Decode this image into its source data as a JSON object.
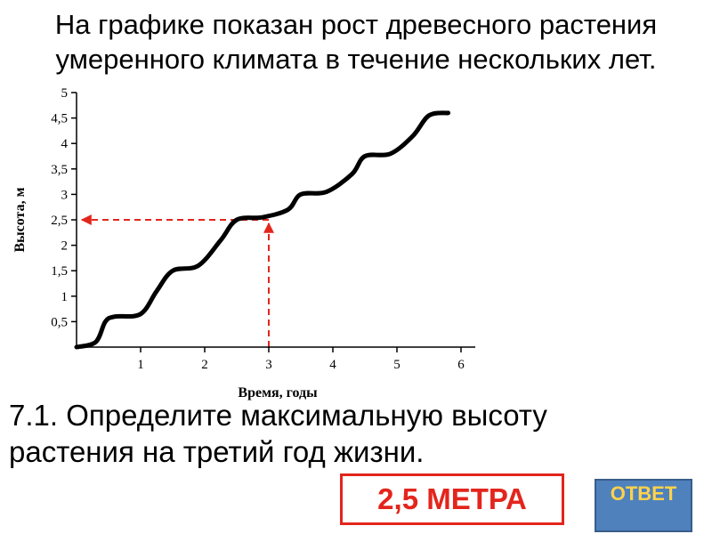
{
  "slide": {
    "title_line1": "На графике показан рост древесного растения",
    "title_line2": "умеренного климата в течение нескольких лет.",
    "question_line1": "7.1. Определите максимальную высоту",
    "question_line2": "растения на третий год жизни.",
    "answer": "2,5 МЕТРА",
    "reveal_button": "ОТВЕТ"
  },
  "colors": {
    "answer_red": "#e3251c",
    "button_blue": "#4f81bd",
    "button_text": "#ffd24a",
    "curve": "#000000"
  },
  "chart_data": {
    "type": "line",
    "xlabel": "Время, годы",
    "ylabel": "Высота, м",
    "xlim": [
      0,
      6
    ],
    "ylim": [
      0,
      5
    ],
    "x_ticks": [
      "1",
      "2",
      "3",
      "4",
      "5",
      "6"
    ],
    "y_ticks": [
      "0,5",
      "1",
      "1,5",
      "2",
      "2,5",
      "3",
      "3,5",
      "4",
      "4,5",
      "5"
    ],
    "grid": false,
    "series": [
      {
        "x": [
          0,
          0.3,
          0.45,
          0.6,
          1.0,
          1.25,
          1.5,
          1.9,
          2.25,
          2.5,
          2.9,
          3.3,
          3.5,
          3.9,
          4.3,
          4.5,
          4.9,
          5.25,
          5.5,
          5.8
        ],
        "y": [
          0,
          0.1,
          0.5,
          0.6,
          0.65,
          1.1,
          1.5,
          1.6,
          2.1,
          2.5,
          2.55,
          2.7,
          3.0,
          3.05,
          3.4,
          3.75,
          3.8,
          4.15,
          4.55,
          4.6
        ]
      }
    ],
    "annotation": {
      "x": 3,
      "y": 2.5,
      "style": "dashed arrows from x-axis up to the curve and from the curve left to the y-axis"
    }
  }
}
